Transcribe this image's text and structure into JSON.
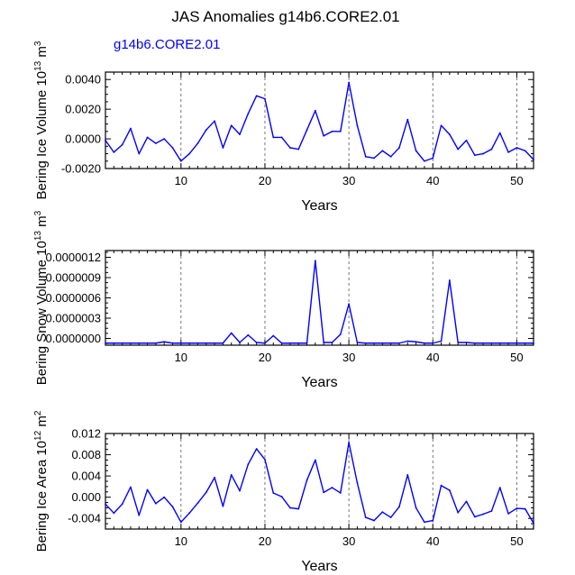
{
  "figure": {
    "title": "JAS Anomalies g14b6.CORE2.01",
    "subtitle": "g14b6.CORE2.01",
    "subtitle_color": "#0000ff",
    "line_color": "#0000ff"
  },
  "chart_data": [
    {
      "type": "line",
      "name": "ice-volume",
      "title": "",
      "xlabel": "Years",
      "ylabel_main": "Bering Ice Volume 10",
      "ylabel_exp": "13",
      "ylabel_unit": " m",
      "ylabel_unit_exp": "3",
      "xlim": [
        1,
        52
      ],
      "ylim": [
        -0.002,
        0.0045
      ],
      "xticks": [
        10,
        20,
        30,
        40,
        50
      ],
      "xtick_labels": [
        "10",
        "20",
        "30",
        "40",
        "50"
      ],
      "yticks": [
        -0.002,
        0.0,
        0.002,
        0.004
      ],
      "ytick_labels": [
        "-0.0020",
        "0.0000",
        "0.0020",
        "0.0040"
      ],
      "vlines": [
        10,
        20,
        30,
        40,
        50
      ],
      "x": [
        1,
        2,
        3,
        4,
        5,
        6,
        7,
        8,
        9,
        10,
        11,
        12,
        13,
        14,
        15,
        16,
        17,
        18,
        19,
        20,
        21,
        22,
        23,
        24,
        25,
        26,
        27,
        28,
        29,
        30,
        31,
        32,
        33,
        34,
        35,
        36,
        37,
        38,
        39,
        40,
        41,
        42,
        43,
        44,
        45,
        46,
        47,
        48,
        49,
        50,
        51,
        52
      ],
      "series": [
        {
          "name": "g14b6.CORE2.01",
          "values": [
            -0.0001,
            -0.0009,
            -0.0004,
            0.0007,
            -0.001,
            0.0001,
            -0.0003,
            0.0,
            -0.0006,
            -0.0015,
            -0.001,
            -0.0003,
            0.0006,
            0.0012,
            -0.0006,
            0.0009,
            0.0003,
            0.0017,
            0.0029,
            0.0027,
            0.0001,
            0.0001,
            -0.0006,
            -0.0007,
            0.0006,
            0.0019,
            0.0002,
            0.0005,
            0.0005,
            0.0038,
            0.0009,
            -0.0012,
            -0.0013,
            -0.0008,
            -0.0012,
            -0.0006,
            0.0013,
            -0.0008,
            -0.0015,
            -0.0013,
            0.0009,
            0.0003,
            -0.0007,
            -0.0001,
            -0.0011,
            -0.001,
            -0.0007,
            0.0004,
            -0.0009,
            -0.0006,
            -0.0008,
            -0.0014
          ]
        }
      ]
    },
    {
      "type": "line",
      "name": "snow-volume",
      "title": "",
      "xlabel": "Years",
      "ylabel_main": "Bering Snow Volume 10",
      "ylabel_exp": "13",
      "ylabel_unit": " m",
      "ylabel_unit_exp": "3",
      "xlim": [
        1,
        52
      ],
      "ylim": [
        -1e-07,
        1.3e-06
      ],
      "xticks": [
        10,
        20,
        30,
        40,
        50
      ],
      "xtick_labels": [
        "10",
        "20",
        "30",
        "40",
        "50"
      ],
      "yticks": [
        0.0,
        3e-07,
        6e-07,
        9e-07,
        1.2e-06
      ],
      "ytick_labels": [
        "0.0000000",
        "0.0000003",
        "0.0000006",
        "0.0000009",
        "0.0000012"
      ],
      "vlines": [
        10,
        20,
        30,
        40,
        50
      ],
      "x": [
        1,
        2,
        3,
        4,
        5,
        6,
        7,
        8,
        9,
        10,
        11,
        12,
        13,
        14,
        15,
        16,
        17,
        18,
        19,
        20,
        21,
        22,
        23,
        24,
        25,
        26,
        27,
        28,
        29,
        30,
        31,
        32,
        33,
        34,
        35,
        36,
        37,
        38,
        39,
        40,
        41,
        42,
        43,
        44,
        45,
        46,
        47,
        48,
        49,
        50,
        51,
        52
      ],
      "series": [
        {
          "name": "g14b6.CORE2.01",
          "values": [
            -7e-08,
            -7e-08,
            -7e-08,
            -7e-08,
            -7e-08,
            -7e-08,
            -7e-08,
            -5e-08,
            -7e-08,
            -7e-08,
            -7e-08,
            -7e-08,
            -7e-08,
            -7e-08,
            -7e-08,
            8e-08,
            -6e-08,
            5e-08,
            -6e-08,
            -7e-08,
            4e-08,
            -7e-08,
            -7e-08,
            -7e-08,
            -7e-08,
            1.15e-06,
            -6e-08,
            -6e-08,
            6e-08,
            5.1e-07,
            -6e-08,
            -7e-08,
            -7e-08,
            -7e-08,
            -7e-08,
            -7e-08,
            -4e-08,
            -5e-08,
            -7e-08,
            -7e-08,
            -4e-08,
            8.6e-07,
            -6e-08,
            -6e-08,
            -7e-08,
            -7e-08,
            -7e-08,
            -7e-08,
            -7e-08,
            -7e-08,
            -7e-08,
            -7e-08
          ]
        }
      ]
    },
    {
      "type": "line",
      "name": "ice-area",
      "title": "",
      "xlabel": "Years",
      "ylabel_main": "Bering Ice Area 10",
      "ylabel_exp": "12",
      "ylabel_unit": " m",
      "ylabel_unit_exp": "2",
      "xlim": [
        1,
        52
      ],
      "ylim": [
        -0.006,
        0.012
      ],
      "xticks": [
        10,
        20,
        30,
        40,
        50
      ],
      "xtick_labels": [
        "10",
        "20",
        "30",
        "40",
        "50"
      ],
      "yticks": [
        -0.004,
        0.0,
        0.004,
        0.008,
        0.012
      ],
      "ytick_labels": [
        "-0.004",
        "0.000",
        "0.004",
        "0.008",
        "0.012"
      ],
      "vlines": [
        10,
        20,
        30,
        40,
        50
      ],
      "x": [
        1,
        2,
        3,
        4,
        5,
        6,
        7,
        8,
        9,
        10,
        11,
        12,
        13,
        14,
        15,
        16,
        17,
        18,
        19,
        20,
        21,
        22,
        23,
        24,
        25,
        26,
        27,
        28,
        29,
        30,
        31,
        32,
        33,
        34,
        35,
        36,
        37,
        38,
        39,
        40,
        41,
        42,
        43,
        44,
        45,
        46,
        47,
        48,
        49,
        50,
        51,
        52
      ],
      "series": [
        {
          "name": "g14b6.CORE2.01",
          "values": [
            -0.0013,
            -0.003,
            -0.0013,
            0.0019,
            -0.0034,
            0.0014,
            -0.0012,
            0.0,
            -0.0018,
            -0.0047,
            -0.003,
            -0.0011,
            0.0009,
            0.0037,
            -0.0017,
            0.0042,
            0.0012,
            0.0062,
            0.0091,
            0.0071,
            0.0008,
            0.0001,
            -0.002,
            -0.0022,
            0.0032,
            0.007,
            0.0009,
            0.0018,
            0.0008,
            0.0103,
            0.0027,
            -0.0038,
            -0.0044,
            -0.0028,
            -0.0038,
            -0.0018,
            0.0042,
            -0.002,
            -0.0047,
            -0.0044,
            0.0022,
            0.0013,
            -0.0029,
            -0.0008,
            -0.0037,
            -0.0032,
            -0.0026,
            0.0018,
            -0.0031,
            -0.0021,
            -0.0022,
            -0.0049
          ]
        }
      ]
    }
  ]
}
